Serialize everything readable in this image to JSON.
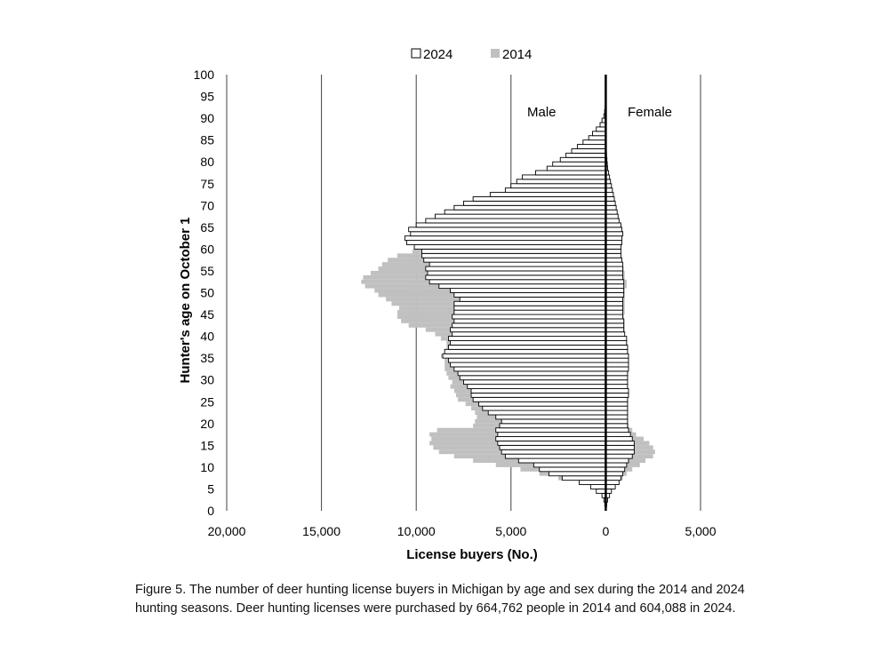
{
  "caption": "Figure 5. The number of deer hunting license buyers in Michigan by age and sex during the 2014 and 2024 hunting seasons. Deer hunting licenses were purchased by 664,762 people in 2014 and 604,088 in 2024.",
  "chart_data": {
    "type": "bar",
    "orientation": "horizontal",
    "subtype": "population-pyramid",
    "xlabel": "License buyers (No.)",
    "ylabel": "Hunter's age on October 1",
    "x_tick_labels": [
      "20,000",
      "15,000",
      "10,000",
      "5,000",
      "0",
      "5,000"
    ],
    "x_tick_values": [
      -20000,
      -15000,
      -10000,
      -5000,
      0,
      5000
    ],
    "xlim": [
      -20000,
      5000
    ],
    "y_ticks": [
      0,
      5,
      10,
      15,
      20,
      25,
      30,
      35,
      40,
      45,
      50,
      55,
      60,
      65,
      70,
      75,
      80,
      85,
      90,
      95,
      100
    ],
    "ylim": [
      0,
      100
    ],
    "grid": "vertical",
    "legend_position": "top",
    "annotations": [
      "Male",
      "Female"
    ],
    "colors": {
      "s2024_fill": "#ffffff",
      "s2024_stroke": "#000000",
      "s2014_fill": "#c0c0c0",
      "center_line": "#000000",
      "grid": "#404040"
    },
    "ages": [
      0,
      1,
      2,
      3,
      4,
      5,
      6,
      7,
      8,
      9,
      10,
      11,
      12,
      13,
      14,
      15,
      16,
      17,
      18,
      19,
      20,
      21,
      22,
      23,
      24,
      25,
      26,
      27,
      28,
      29,
      30,
      31,
      32,
      33,
      34,
      35,
      36,
      37,
      38,
      39,
      40,
      41,
      42,
      43,
      44,
      45,
      46,
      47,
      48,
      49,
      50,
      51,
      52,
      53,
      54,
      55,
      56,
      57,
      58,
      59,
      60,
      61,
      62,
      63,
      64,
      65,
      66,
      67,
      68,
      69,
      70,
      71,
      72,
      73,
      74,
      75,
      76,
      77,
      78,
      79,
      80,
      81,
      82,
      83,
      84,
      85,
      86,
      87,
      88,
      89,
      90,
      91,
      92,
      93,
      94,
      95,
      96,
      97,
      98,
      99
    ],
    "series": [
      {
        "name": "2024",
        "male": [
          0,
          50,
          100,
          200,
          500,
          800,
          1400,
          2300,
          3000,
          3500,
          3800,
          4600,
          5300,
          5500,
          5600,
          5700,
          5800,
          5700,
          5800,
          5600,
          5500,
          5800,
          6200,
          6500,
          6700,
          7000,
          7100,
          7100,
          7300,
          7500,
          7700,
          7800,
          8000,
          8200,
          8300,
          8600,
          8500,
          8300,
          8200,
          8300,
          8100,
          8200,
          8100,
          8000,
          8100,
          8000,
          8000,
          8000,
          7700,
          8000,
          8200,
          8800,
          9300,
          9500,
          9400,
          9500,
          9300,
          9600,
          9700,
          9700,
          10100,
          10500,
          10600,
          10300,
          10400,
          10000,
          9500,
          9000,
          8500,
          8000,
          7500,
          7000,
          6100,
          5300,
          5000,
          4700,
          4400,
          3700,
          3100,
          2800,
          2400,
          2100,
          1800,
          1500,
          1200,
          900,
          700,
          500,
          300,
          200,
          100,
          60,
          40,
          20,
          10,
          5,
          0,
          0,
          0,
          0
        ],
        "female": [
          0,
          50,
          100,
          200,
          300,
          500,
          700,
          800,
          900,
          1000,
          1100,
          1200,
          1400,
          1500,
          1500,
          1500,
          1400,
          1300,
          1200,
          1150,
          1150,
          1150,
          1150,
          1150,
          1150,
          1150,
          1200,
          1200,
          1150,
          1150,
          1150,
          1150,
          1200,
          1200,
          1200,
          1200,
          1150,
          1150,
          1100,
          1100,
          1000,
          950,
          950,
          950,
          900,
          900,
          900,
          900,
          900,
          950,
          950,
          950,
          950,
          900,
          900,
          900,
          900,
          850,
          800,
          800,
          800,
          850,
          850,
          900,
          850,
          800,
          700,
          650,
          600,
          550,
          500,
          450,
          400,
          350,
          300,
          250,
          200,
          150,
          100,
          80,
          60,
          40,
          30,
          20,
          10,
          5,
          3,
          2,
          1,
          0,
          0,
          0,
          0,
          0,
          0,
          0,
          0,
          0,
          0,
          0
        ]
      },
      {
        "name": "2014",
        "male": [
          0,
          50,
          100,
          200,
          500,
          800,
          1000,
          2500,
          3500,
          4500,
          5800,
          7000,
          8000,
          8800,
          9100,
          9300,
          9200,
          9300,
          8900,
          7000,
          6900,
          6800,
          6900,
          7100,
          7400,
          7800,
          7900,
          8000,
          8200,
          8100,
          8300,
          8400,
          8500,
          8500,
          8500,
          8700,
          8500,
          8400,
          8400,
          8700,
          9000,
          9500,
          10400,
          10800,
          11000,
          11000,
          10900,
          11300,
          11600,
          12000,
          12200,
          12700,
          12900,
          12800,
          12400,
          12000,
          11800,
          11500,
          11000,
          10200,
          9300,
          9000,
          8800,
          8500,
          8200,
          8000,
          8000,
          7800,
          6500,
          5800,
          5200,
          5200,
          4800,
          4300,
          3900,
          3600,
          3300,
          3100,
          2700,
          2300,
          2000,
          1700,
          1400,
          1100,
          800,
          600,
          400,
          300,
          200,
          100,
          50,
          30,
          20,
          10,
          5,
          0,
          0,
          0,
          0,
          0
        ],
        "female": [
          0,
          50,
          100,
          200,
          300,
          500,
          700,
          900,
          1100,
          1400,
          1800,
          2100,
          2500,
          2600,
          2500,
          2300,
          2000,
          1600,
          1400,
          1200,
          1100,
          1050,
          1050,
          1000,
          1000,
          1000,
          1000,
          1000,
          1000,
          950,
          950,
          950,
          950,
          950,
          950,
          950,
          950,
          900,
          950,
          950,
          1000,
          1000,
          1000,
          1000,
          950,
          1000,
          1000,
          1000,
          1000,
          1000,
          1000,
          1100,
          1100,
          1000,
          1000,
          950,
          900,
          800,
          800,
          700,
          700,
          700,
          700,
          650,
          600,
          600,
          600,
          550,
          500,
          450,
          400,
          350,
          300,
          250,
          200,
          150,
          120,
          100,
          80,
          60,
          40,
          30,
          20,
          10,
          5,
          3,
          2,
          1,
          0,
          0,
          0,
          0,
          0,
          0,
          0,
          0,
          0,
          0,
          0,
          0
        ]
      }
    ]
  }
}
